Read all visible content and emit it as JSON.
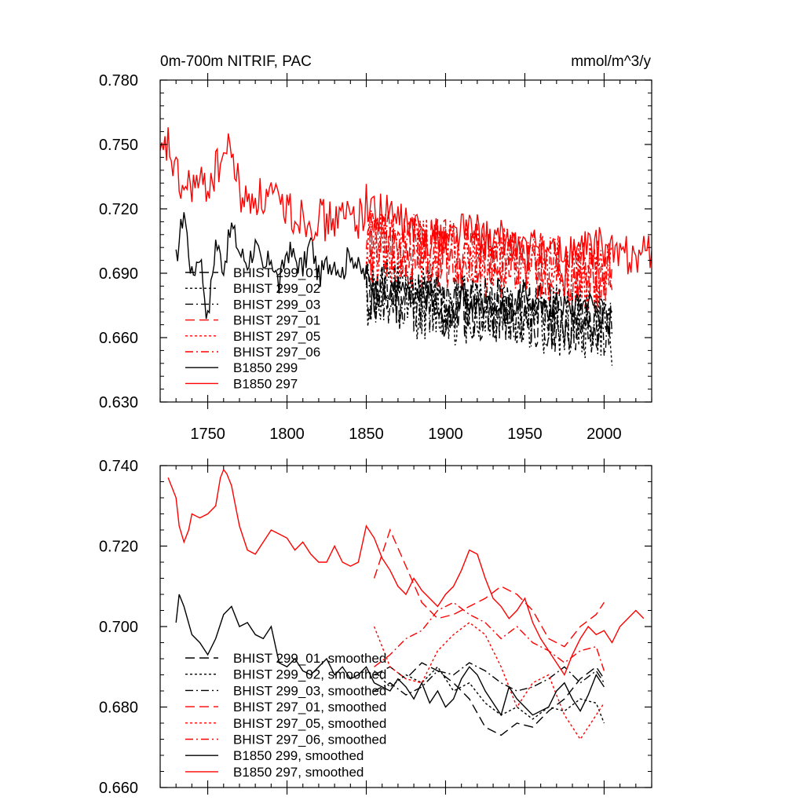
{
  "chart_data": [
    {
      "type": "line",
      "title": "0m-700m NITRIF, PAC",
      "units": "mmol/m^3/y",
      "xlabel": "",
      "ylabel": "",
      "xlim": [
        1720,
        2030
      ],
      "ylim": [
        0.63,
        0.78
      ],
      "x_ticks": [
        1750,
        1800,
        1850,
        1900,
        1950,
        2000
      ],
      "x_tick_labels": [
        "1750",
        "1800",
        "1850",
        "1900",
        "1950",
        "2000"
      ],
      "y_ticks": [
        0.63,
        0.66,
        0.69,
        0.72,
        0.75,
        0.78
      ],
      "y_tick_labels": [
        "0.630",
        "0.660",
        "0.690",
        "0.720",
        "0.750",
        "0.780"
      ],
      "legend_position": "bottom-left",
      "grid": false,
      "series": [
        {
          "name": "BHIST 299_01",
          "color": "#000000",
          "dash": "long-dash",
          "x_start": 1850,
          "x_end": 2005,
          "mean": 0.681,
          "amplitude": 0.016,
          "trend": -0.0001,
          "seed": 11
        },
        {
          "name": "BHIST 299_02",
          "color": "#000000",
          "dash": "dotted",
          "x_start": 1850,
          "x_end": 2005,
          "mean": 0.68,
          "amplitude": 0.018,
          "trend": -0.0001,
          "seed": 12
        },
        {
          "name": "BHIST 299_03",
          "color": "#000000",
          "dash": "dash-dot",
          "x_start": 1850,
          "x_end": 2005,
          "mean": 0.682,
          "amplitude": 0.016,
          "trend": -0.0001,
          "seed": 13
        },
        {
          "name": "BHIST 297_01",
          "color": "#ff0000",
          "dash": "long-dash",
          "x_start": 1850,
          "x_end": 2005,
          "mean": 0.704,
          "amplitude": 0.016,
          "trend": -0.0001,
          "seed": 14
        },
        {
          "name": "BHIST 297_05",
          "color": "#ff0000",
          "dash": "dotted",
          "x_start": 1850,
          "x_end": 2005,
          "mean": 0.703,
          "amplitude": 0.017,
          "trend": -0.0001,
          "seed": 15
        },
        {
          "name": "BHIST 297_06",
          "color": "#ff0000",
          "dash": "dash-dot",
          "x_start": 1850,
          "x_end": 2005,
          "mean": 0.705,
          "amplitude": 0.016,
          "trend": -0.0001,
          "seed": 16
        },
        {
          "name": "B1850 299",
          "color": "#000000",
          "dash": "solid",
          "x": [
            1730,
            1735,
            1740,
            1745,
            1750,
            1755,
            1760,
            1765,
            1770,
            1775,
            1780,
            1785,
            1790,
            1795,
            1800,
            1805,
            1810,
            1815,
            1820,
            1825,
            1830,
            1835,
            1840,
            1845,
            1850,
            1860,
            1870,
            1880,
            1890,
            1900,
            1910,
            1920,
            1930,
            1940,
            1950,
            1960,
            1970,
            1980,
            1990,
            2000
          ],
          "values": [
            0.696,
            0.72,
            0.688,
            0.7,
            0.668,
            0.705,
            0.693,
            0.712,
            0.7,
            0.695,
            0.703,
            0.69,
            0.698,
            0.684,
            0.701,
            0.697,
            0.692,
            0.705,
            0.688,
            0.694,
            0.696,
            0.69,
            0.701,
            0.692,
            0.689,
            0.678,
            0.684,
            0.676,
            0.68,
            0.665,
            0.678,
            0.674,
            0.676,
            0.671,
            0.68,
            0.672,
            0.676,
            0.674,
            0.678,
            0.67
          ],
          "amplitude": 0.006,
          "seed": 17
        },
        {
          "name": "B1850 297",
          "color": "#ff0000",
          "dash": "solid",
          "x": [
            1720,
            1725,
            1730,
            1735,
            1740,
            1745,
            1750,
            1755,
            1760,
            1765,
            1770,
            1775,
            1780,
            1785,
            1790,
            1795,
            1800,
            1805,
            1810,
            1815,
            1820,
            1825,
            1830,
            1835,
            1840,
            1845,
            1850,
            1860,
            1870,
            1880,
            1890,
            1900,
            1910,
            1920,
            1930,
            1940,
            1950,
            1960,
            1970,
            1980,
            1990,
            2000,
            2010,
            2020,
            2030
          ],
          "values": [
            0.742,
            0.75,
            0.735,
            0.728,
            0.732,
            0.73,
            0.731,
            0.738,
            0.745,
            0.748,
            0.728,
            0.722,
            0.727,
            0.724,
            0.726,
            0.72,
            0.722,
            0.716,
            0.718,
            0.714,
            0.717,
            0.713,
            0.716,
            0.715,
            0.718,
            0.716,
            0.722,
            0.718,
            0.715,
            0.71,
            0.708,
            0.706,
            0.712,
            0.708,
            0.704,
            0.706,
            0.7,
            0.702,
            0.698,
            0.7,
            0.701,
            0.702,
            0.698,
            0.7,
            0.699
          ],
          "amplitude": 0.01,
          "seed": 18
        }
      ]
    },
    {
      "type": "line",
      "title": "",
      "xlabel": "",
      "ylabel": "",
      "xlim": [
        1720,
        2030
      ],
      "ylim": [
        0.66,
        0.74
      ],
      "y_ticks": [
        0.66,
        0.68,
        0.7,
        0.72,
        0.74
      ],
      "y_tick_labels": [
        "0.660",
        "0.680",
        "0.700",
        "0.720",
        "0.740"
      ],
      "legend_position": "bottom-left",
      "grid": false,
      "series": [
        {
          "name": "BHIST 299_01, smoothed",
          "color": "#000000",
          "dash": "long-dash",
          "x": [
            1855,
            1865,
            1875,
            1885,
            1895,
            1905,
            1915,
            1925,
            1935,
            1945,
            1955,
            1965,
            1975,
            1985,
            1995,
            2000
          ],
          "values": [
            0.688,
            0.69,
            0.687,
            0.691,
            0.689,
            0.686,
            0.682,
            0.675,
            0.673,
            0.676,
            0.675,
            0.679,
            0.682,
            0.687,
            0.69,
            0.687
          ]
        },
        {
          "name": "BHIST 299_02, smoothed",
          "color": "#000000",
          "dash": "dotted",
          "x": [
            1855,
            1865,
            1875,
            1885,
            1895,
            1905,
            1915,
            1925,
            1935,
            1945,
            1955,
            1965,
            1975,
            1985,
            1995,
            2000
          ],
          "values": [
            0.689,
            0.685,
            0.688,
            0.686,
            0.69,
            0.684,
            0.686,
            0.681,
            0.678,
            0.68,
            0.677,
            0.68,
            0.679,
            0.682,
            0.681,
            0.676
          ]
        },
        {
          "name": "BHIST 299_03, smoothed",
          "color": "#000000",
          "dash": "dash-dot",
          "x": [
            1855,
            1865,
            1875,
            1885,
            1895,
            1905,
            1915,
            1925,
            1935,
            1945,
            1955,
            1965,
            1975,
            1985,
            1995,
            2000
          ],
          "values": [
            0.684,
            0.686,
            0.683,
            0.685,
            0.689,
            0.688,
            0.691,
            0.689,
            0.686,
            0.684,
            0.685,
            0.687,
            0.69,
            0.686,
            0.689,
            0.686
          ]
        },
        {
          "name": "BHIST 297_01, smoothed",
          "color": "#ff0000",
          "dash": "long-dash",
          "x": [
            1855,
            1865,
            1875,
            1885,
            1895,
            1905,
            1915,
            1925,
            1935,
            1945,
            1955,
            1965,
            1975,
            1985,
            1995,
            2000
          ],
          "values": [
            0.712,
            0.724,
            0.715,
            0.706,
            0.702,
            0.703,
            0.705,
            0.707,
            0.71,
            0.708,
            0.704,
            0.697,
            0.695,
            0.7,
            0.703,
            0.706
          ]
        },
        {
          "name": "BHIST 297_05, smoothed",
          "color": "#ff0000",
          "dash": "dotted",
          "x": [
            1855,
            1865,
            1875,
            1885,
            1895,
            1905,
            1915,
            1925,
            1935,
            1945,
            1955,
            1965,
            1975,
            1985,
            1995,
            2000
          ],
          "values": [
            0.7,
            0.69,
            0.687,
            0.686,
            0.694,
            0.698,
            0.701,
            0.698,
            0.69,
            0.68,
            0.686,
            0.688,
            0.678,
            0.672,
            0.678,
            0.681
          ]
        },
        {
          "name": "BHIST 297_06, smoothed",
          "color": "#ff0000",
          "dash": "dash-dot",
          "x": [
            1855,
            1865,
            1875,
            1885,
            1895,
            1905,
            1915,
            1925,
            1935,
            1945,
            1955,
            1965,
            1975,
            1985,
            1995,
            2000
          ],
          "values": [
            0.69,
            0.693,
            0.697,
            0.699,
            0.704,
            0.706,
            0.703,
            0.701,
            0.697,
            0.7,
            0.696,
            0.694,
            0.691,
            0.694,
            0.695,
            0.689
          ]
        },
        {
          "name": "B1850 299, smoothed",
          "color": "#000000",
          "dash": "solid",
          "x": [
            1730,
            1732,
            1735,
            1740,
            1745,
            1750,
            1755,
            1760,
            1765,
            1770,
            1775,
            1780,
            1785,
            1790,
            1795,
            1800,
            1805,
            1810,
            1815,
            1820,
            1825,
            1830,
            1835,
            1840,
            1845,
            1850,
            1855,
            1860,
            1865,
            1870,
            1875,
            1880,
            1885,
            1890,
            1895,
            1900,
            1905,
            1910,
            1915,
            1920,
            1925,
            1930,
            1935,
            1940,
            1945,
            1950,
            1955,
            1960,
            1965,
            1970,
            1975,
            1980,
            1985,
            1990,
            1995,
            2000
          ],
          "values": [
            0.701,
            0.708,
            0.705,
            0.698,
            0.696,
            0.693,
            0.697,
            0.703,
            0.705,
            0.7,
            0.701,
            0.698,
            0.697,
            0.7,
            0.691,
            0.69,
            0.692,
            0.689,
            0.688,
            0.69,
            0.692,
            0.688,
            0.69,
            0.687,
            0.688,
            0.69,
            0.686,
            0.685,
            0.684,
            0.687,
            0.685,
            0.682,
            0.686,
            0.681,
            0.684,
            0.68,
            0.682,
            0.687,
            0.69,
            0.688,
            0.684,
            0.681,
            0.678,
            0.685,
            0.682,
            0.68,
            0.678,
            0.679,
            0.68,
            0.684,
            0.686,
            0.682,
            0.679,
            0.683,
            0.688,
            0.685
          ]
        },
        {
          "name": "B1850 297, smoothed",
          "color": "#ff0000",
          "dash": "solid",
          "x": [
            1725,
            1728,
            1730,
            1732,
            1735,
            1738,
            1740,
            1745,
            1750,
            1755,
            1758,
            1760,
            1762,
            1765,
            1768,
            1770,
            1775,
            1780,
            1785,
            1790,
            1795,
            1800,
            1805,
            1810,
            1815,
            1820,
            1825,
            1830,
            1835,
            1840,
            1845,
            1850,
            1855,
            1860,
            1865,
            1870,
            1875,
            1880,
            1885,
            1890,
            1895,
            1900,
            1905,
            1910,
            1915,
            1920,
            1925,
            1930,
            1935,
            1940,
            1945,
            1950,
            1955,
            1960,
            1965,
            1970,
            1975,
            1980,
            1985,
            1990,
            1995,
            2000,
            2005,
            2010,
            2015,
            2020,
            2025
          ],
          "values": [
            0.737,
            0.734,
            0.732,
            0.725,
            0.721,
            0.724,
            0.728,
            0.727,
            0.728,
            0.73,
            0.737,
            0.739,
            0.738,
            0.735,
            0.729,
            0.725,
            0.719,
            0.718,
            0.721,
            0.724,
            0.723,
            0.722,
            0.719,
            0.721,
            0.718,
            0.716,
            0.716,
            0.72,
            0.716,
            0.715,
            0.716,
            0.725,
            0.722,
            0.717,
            0.714,
            0.71,
            0.708,
            0.712,
            0.709,
            0.707,
            0.705,
            0.708,
            0.71,
            0.714,
            0.719,
            0.718,
            0.712,
            0.707,
            0.705,
            0.702,
            0.704,
            0.707,
            0.701,
            0.697,
            0.694,
            0.691,
            0.688,
            0.693,
            0.697,
            0.7,
            0.698,
            0.699,
            0.696,
            0.7,
            0.702,
            0.704,
            0.702
          ]
        }
      ]
    }
  ]
}
